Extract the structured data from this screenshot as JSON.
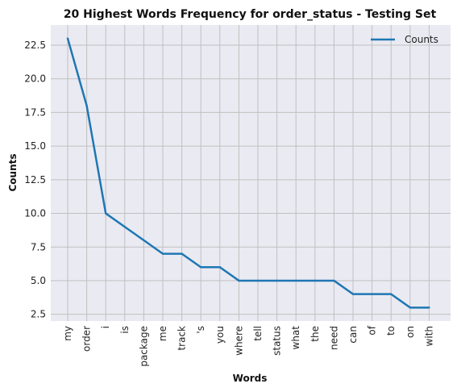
{
  "chart_data": {
    "type": "line",
    "title": "20 Highest Words Frequency for order_status - Testing Set",
    "xlabel": "Words",
    "ylabel": "Counts",
    "categories": [
      "my",
      "order",
      "i",
      "is",
      "package",
      "me",
      "track",
      "'s",
      "you",
      "where",
      "tell",
      "status",
      "what",
      "the",
      "need",
      "can",
      "of",
      "to",
      "on",
      "with"
    ],
    "series": [
      {
        "name": "Counts",
        "values": [
          23,
          18,
          10,
          9,
          8,
          7,
          7,
          6,
          6,
          5,
          5,
          5,
          5,
          5,
          5,
          4,
          4,
          4,
          3,
          3
        ]
      }
    ],
    "yticks": [
      "2.5",
      "5.0",
      "7.5",
      "10.0",
      "12.5",
      "15.0",
      "17.5",
      "20.0",
      "22.5"
    ],
    "ylim": [
      2.0,
      24.0
    ],
    "grid": true,
    "legend_position": "top-right",
    "colors": {
      "line": "#1f77b4",
      "plot_background": "#eaeaf2",
      "grid": "#c0c0c0"
    }
  }
}
